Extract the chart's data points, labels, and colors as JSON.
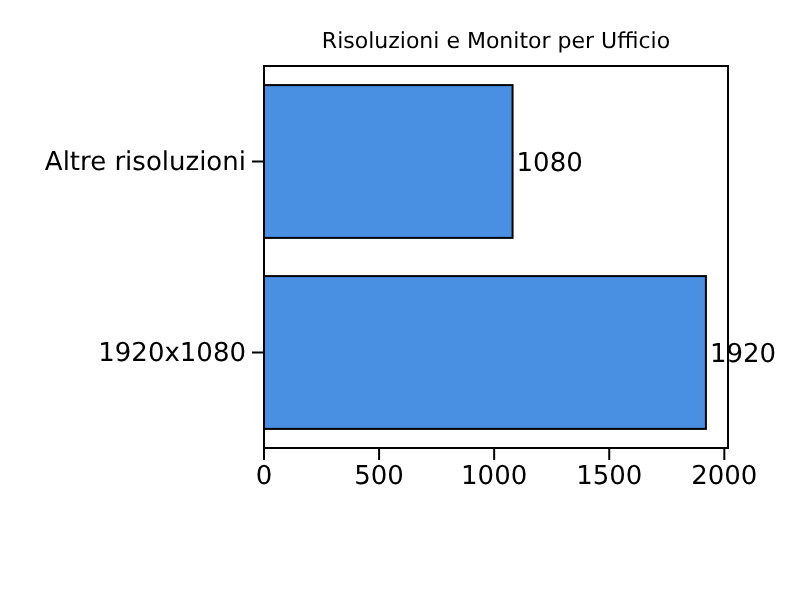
{
  "chart_data": {
    "type": "bar",
    "orientation": "horizontal",
    "title": "Risoluzioni e Monitor per Ufficio",
    "categories": [
      "Altre risoluzioni",
      "1920x1080"
    ],
    "values": [
      1080,
      1920
    ],
    "color": "#4a90e2",
    "xlim": [
      0,
      2016
    ],
    "xticks": [
      0,
      500,
      1000,
      1500,
      2000
    ],
    "data_labels": true
  }
}
